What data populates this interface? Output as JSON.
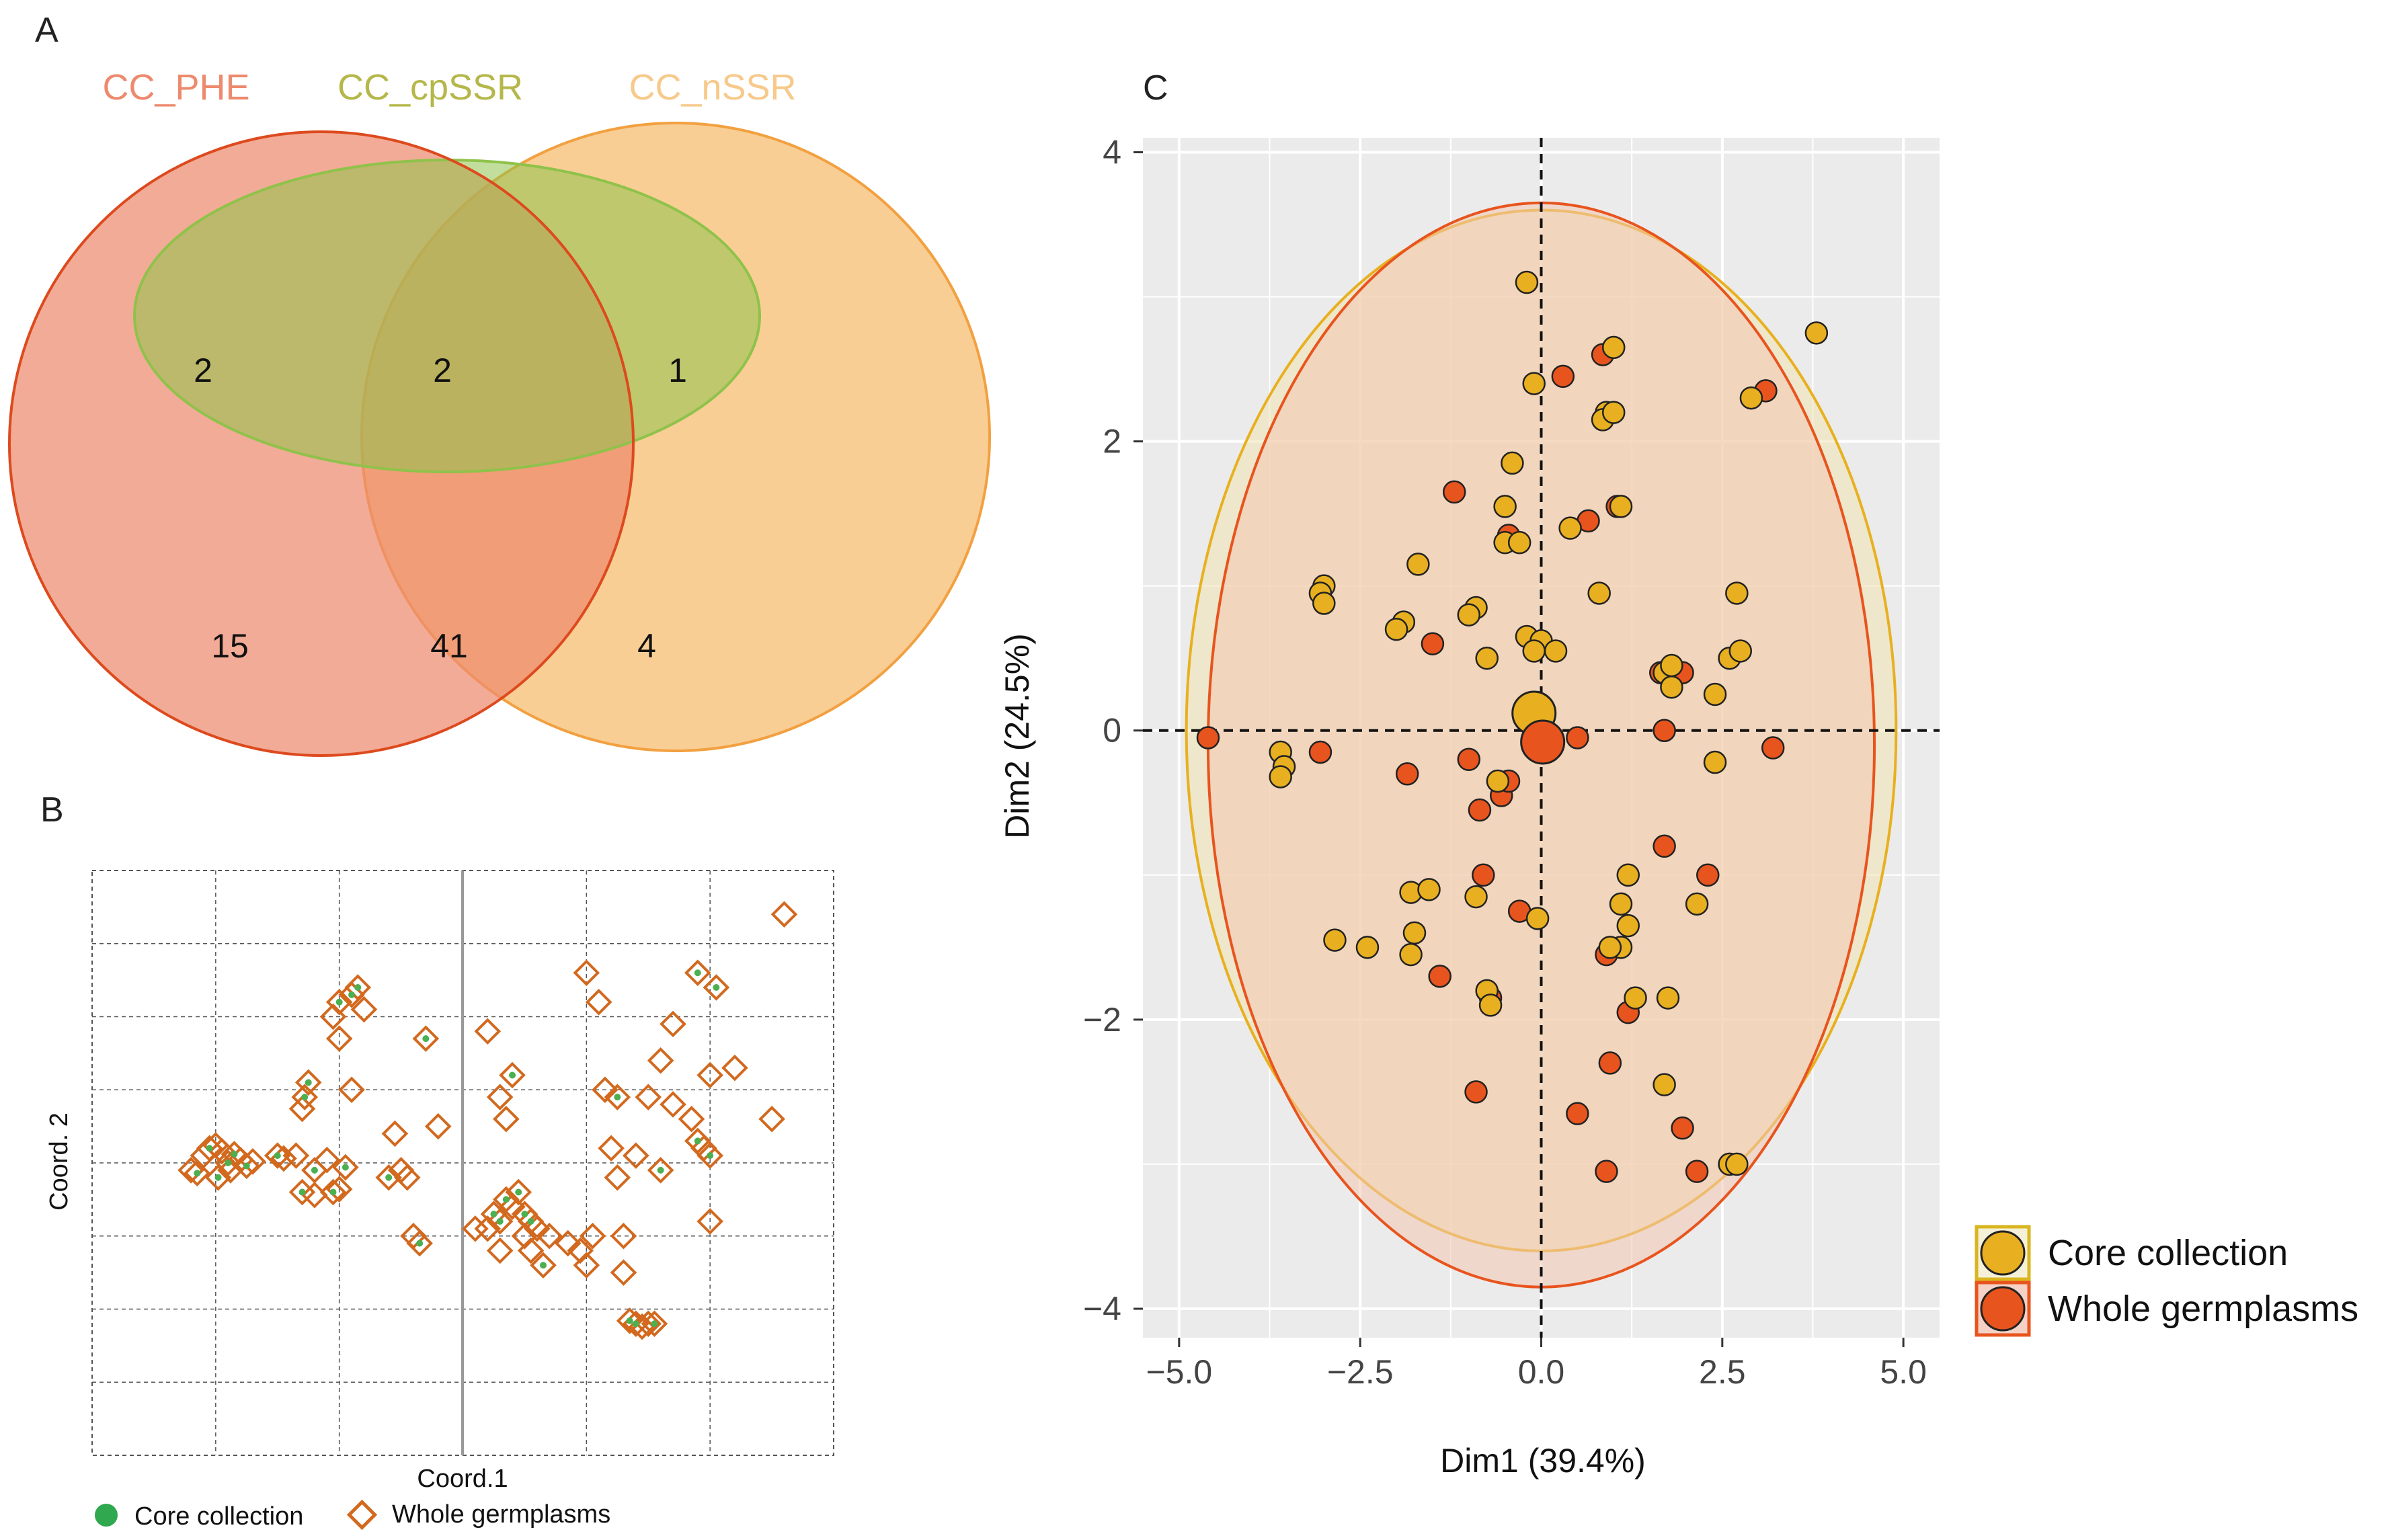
{
  "panels": {
    "a": {
      "label": "A",
      "sets": [
        {
          "name": "CC_PHE",
          "color": "#ED8A6E",
          "stroke": "#DD4A1E"
        },
        {
          "name": "CC_cpSSR",
          "color": "#B5B74A",
          "stroke": "#8FC24A"
        },
        {
          "name": "CC_nSSR",
          "color": "#F7C98A",
          "stroke": "#F2A040"
        }
      ],
      "counts": {
        "phe_cp_only": "2",
        "all_three": "2",
        "cp_nssr_only": "1",
        "phe_only": "15",
        "phe_nssr_only": "41",
        "nssr_only": "4"
      }
    },
    "b": {
      "label": "B"
    },
    "c": {
      "label": "C"
    }
  },
  "chart_data": [
    {
      "type": "scatter",
      "panel": "B",
      "title": "",
      "xlabel": "Coord.1",
      "ylabel": "Coord. 2",
      "xlim": [
        -3.0,
        3.0
      ],
      "ylim": [
        -2.0,
        2.0
      ],
      "legend": "bottom",
      "series": [
        {
          "name": "Whole germplasms",
          "marker": "open-diamond",
          "color": "#D2691E",
          "points": [
            [
              -2.2,
              -0.05
            ],
            [
              -2.15,
              -0.07
            ],
            [
              -2.1,
              0.05
            ],
            [
              -2.05,
              0.1
            ],
            [
              -2.0,
              0.12
            ],
            [
              -1.98,
              -0.1
            ],
            [
              -1.95,
              0.08
            ],
            [
              -1.9,
              0.0
            ],
            [
              -1.88,
              -0.05
            ],
            [
              -1.85,
              0.06
            ],
            [
              -1.8,
              0.02
            ],
            [
              -1.75,
              -0.02
            ],
            [
              -1.7,
              0.01
            ],
            [
              -1.5,
              0.05
            ],
            [
              -1.45,
              0.03
            ],
            [
              -1.3,
              -0.2
            ],
            [
              -1.35,
              0.05
            ],
            [
              -1.3,
              0.37
            ],
            [
              -1.28,
              0.45
            ],
            [
              -1.25,
              0.55
            ],
            [
              -1.2,
              -0.22
            ],
            [
              -1.2,
              -0.05
            ],
            [
              -1.1,
              0.02
            ],
            [
              -1.05,
              -0.2
            ],
            [
              -1.0,
              -0.18
            ],
            [
              -0.95,
              -0.03
            ],
            [
              -1.0,
              0.85
            ],
            [
              -1.05,
              1.0
            ],
            [
              -1.0,
              1.1
            ],
            [
              -0.9,
              1.15
            ],
            [
              -0.85,
              1.2
            ],
            [
              -0.8,
              1.05
            ],
            [
              -0.9,
              0.5
            ],
            [
              -0.6,
              -0.1
            ],
            [
              -0.55,
              0.2
            ],
            [
              -0.5,
              -0.05
            ],
            [
              -0.45,
              -0.1
            ],
            [
              -0.4,
              -0.5
            ],
            [
              -0.35,
              -0.55
            ],
            [
              -0.3,
              0.85
            ],
            [
              -0.2,
              0.25
            ],
            [
              0.1,
              -0.45
            ],
            [
              0.2,
              -0.45
            ],
            [
              0.25,
              -0.35
            ],
            [
              0.3,
              -0.4
            ],
            [
              0.3,
              -0.6
            ],
            [
              0.35,
              -0.25
            ],
            [
              0.4,
              -0.3
            ],
            [
              0.45,
              -0.2
            ],
            [
              0.5,
              -0.35
            ],
            [
              0.5,
              -0.5
            ],
            [
              0.55,
              -0.6
            ],
            [
              0.55,
              -0.4
            ],
            [
              0.6,
              -0.45
            ],
            [
              0.65,
              -0.7
            ],
            [
              0.7,
              -0.5
            ],
            [
              0.2,
              0.9
            ],
            [
              0.3,
              0.45
            ],
            [
              0.35,
              0.3
            ],
            [
              0.4,
              0.6
            ],
            [
              0.85,
              -0.55
            ],
            [
              0.95,
              -0.6
            ],
            [
              1.0,
              -0.7
            ],
            [
              1.05,
              -0.5
            ],
            [
              1.0,
              1.3
            ],
            [
              1.1,
              1.1
            ],
            [
              1.2,
              0.1
            ],
            [
              1.15,
              0.5
            ],
            [
              1.25,
              0.45
            ],
            [
              1.25,
              -0.1
            ],
            [
              1.3,
              -0.5
            ],
            [
              1.3,
              -0.75
            ],
            [
              1.35,
              -1.08
            ],
            [
              1.4,
              -1.1
            ],
            [
              1.45,
              -1.12
            ],
            [
              1.5,
              -1.1
            ],
            [
              1.55,
              -1.1
            ],
            [
              1.4,
              0.05
            ],
            [
              1.6,
              -0.05
            ],
            [
              1.5,
              0.45
            ],
            [
              1.6,
              0.7
            ],
            [
              1.7,
              0.95
            ],
            [
              1.7,
              0.4
            ],
            [
              1.85,
              0.3
            ],
            [
              1.9,
              1.3
            ],
            [
              1.9,
              0.15
            ],
            [
              1.95,
              0.1
            ],
            [
              2.0,
              0.05
            ],
            [
              2.0,
              0.6
            ],
            [
              2.0,
              -0.4
            ],
            [
              2.05,
              1.2
            ],
            [
              2.2,
              0.65
            ],
            [
              2.5,
              0.3
            ],
            [
              2.6,
              1.7
            ]
          ]
        },
        {
          "name": "Core collection",
          "marker": "dot",
          "color": "#4CAF50",
          "points": [
            [
              -2.15,
              -0.07
            ],
            [
              -2.05,
              0.1
            ],
            [
              -1.98,
              -0.1
            ],
            [
              -1.9,
              0.0
            ],
            [
              -1.85,
              0.06
            ],
            [
              -1.75,
              -0.02
            ],
            [
              -1.5,
              0.05
            ],
            [
              -1.3,
              -0.2
            ],
            [
              -1.28,
              0.45
            ],
            [
              -1.25,
              0.55
            ],
            [
              -1.2,
              -0.05
            ],
            [
              -1.05,
              -0.2
            ],
            [
              -0.95,
              -0.03
            ],
            [
              -1.0,
              1.1
            ],
            [
              -0.85,
              1.2
            ],
            [
              -0.9,
              1.15
            ],
            [
              -0.6,
              -0.1
            ],
            [
              -0.35,
              -0.55
            ],
            [
              -0.3,
              0.85
            ],
            [
              0.25,
              -0.35
            ],
            [
              0.3,
              -0.4
            ],
            [
              0.35,
              -0.25
            ],
            [
              0.4,
              0.6
            ],
            [
              0.45,
              -0.2
            ],
            [
              0.5,
              -0.35
            ],
            [
              0.55,
              -0.4
            ],
            [
              0.65,
              -0.7
            ],
            [
              1.25,
              0.45
            ],
            [
              1.35,
              -1.08
            ],
            [
              1.4,
              -1.1
            ],
            [
              1.55,
              -1.1
            ],
            [
              1.6,
              -0.05
            ],
            [
              1.9,
              0.15
            ],
            [
              2.0,
              0.05
            ],
            [
              1.9,
              1.3
            ],
            [
              2.05,
              1.2
            ]
          ]
        }
      ]
    },
    {
      "type": "scatter",
      "panel": "C",
      "title": "",
      "xlabel": "Dim1 (39.4%)",
      "ylabel": "Dim2 (24.5%)",
      "xlim": [
        -5.5,
        5.5
      ],
      "ylim": [
        -4.2,
        4.1
      ],
      "xticks": [
        -5.0,
        -2.5,
        0.0,
        2.5,
        5.0
      ],
      "xticklabels": [
        "−5.0",
        "−2.5",
        "0.0",
        "2.5",
        "5.0"
      ],
      "yticks": [
        -4,
        -2,
        0,
        2,
        4
      ],
      "yticklabels": [
        "−4",
        "−2",
        "0",
        "2",
        "4"
      ],
      "legend": "right",
      "series": [
        {
          "name": "Core collection",
          "color": "#E8B020",
          "ellipse": {
            "cx": 0.0,
            "cy": 0.0,
            "rx": 4.9,
            "ry": 3.6
          },
          "centroid": [
            -0.1,
            0.12
          ],
          "points": [
            [
              -0.2,
              3.1
            ],
            [
              3.8,
              2.75
            ],
            [
              -0.1,
              2.4
            ],
            [
              1.0,
              2.65
            ],
            [
              0.9,
              2.2
            ],
            [
              0.85,
              2.15
            ],
            [
              1.0,
              2.2
            ],
            [
              2.9,
              2.3
            ],
            [
              -0.4,
              1.85
            ],
            [
              -0.5,
              1.55
            ],
            [
              -0.5,
              1.3
            ],
            [
              -0.3,
              1.3
            ],
            [
              0.4,
              1.4
            ],
            [
              1.1,
              1.55
            ],
            [
              -1.7,
              1.15
            ],
            [
              -3.0,
              1.0
            ],
            [
              -3.05,
              0.95
            ],
            [
              -3.0,
              0.88
            ],
            [
              -0.9,
              0.85
            ],
            [
              -1.0,
              0.8
            ],
            [
              -1.9,
              0.75
            ],
            [
              -2.0,
              0.7
            ],
            [
              0.8,
              0.95
            ],
            [
              2.7,
              0.95
            ],
            [
              -0.2,
              0.65
            ],
            [
              0.0,
              0.62
            ],
            [
              -0.1,
              0.55
            ],
            [
              0.2,
              0.55
            ],
            [
              -0.75,
              0.5
            ],
            [
              1.7,
              0.4
            ],
            [
              1.8,
              0.45
            ],
            [
              1.8,
              0.3
            ],
            [
              2.6,
              0.5
            ],
            [
              2.75,
              0.55
            ],
            [
              2.4,
              0.25
            ],
            [
              -3.6,
              -0.15
            ],
            [
              -3.55,
              -0.25
            ],
            [
              -3.6,
              -0.32
            ],
            [
              -0.6,
              -0.35
            ],
            [
              2.4,
              -0.22
            ],
            [
              1.2,
              -1.0
            ],
            [
              -1.8,
              -1.12
            ],
            [
              -1.55,
              -1.1
            ],
            [
              -0.9,
              -1.15
            ],
            [
              -0.05,
              -1.3
            ],
            [
              1.1,
              -1.2
            ],
            [
              1.2,
              -1.35
            ],
            [
              1.1,
              -1.5
            ],
            [
              0.95,
              -1.5
            ],
            [
              2.15,
              -1.2
            ],
            [
              -2.85,
              -1.45
            ],
            [
              -2.4,
              -1.5
            ],
            [
              -1.75,
              -1.4
            ],
            [
              -1.8,
              -1.55
            ],
            [
              -0.75,
              -1.8
            ],
            [
              -0.7,
              -1.9
            ],
            [
              1.3,
              -1.85
            ],
            [
              1.75,
              -1.85
            ],
            [
              1.7,
              -2.45
            ],
            [
              2.6,
              -3.0
            ],
            [
              2.7,
              -3.0
            ]
          ]
        },
        {
          "name": "Whole germplasms",
          "color": "#E8541E",
          "ellipse": {
            "cx": 0.0,
            "cy": -0.1,
            "rx": 4.6,
            "ry": 3.75
          },
          "centroid": [
            0.02,
            -0.08
          ],
          "points": [
            [
              0.3,
              2.45
            ],
            [
              0.85,
              2.6
            ],
            [
              3.1,
              2.35
            ],
            [
              -1.2,
              1.65
            ],
            [
              1.05,
              1.55
            ],
            [
              0.65,
              1.45
            ],
            [
              -0.45,
              1.35
            ],
            [
              -1.5,
              0.6
            ],
            [
              1.65,
              0.4
            ],
            [
              1.95,
              0.4
            ],
            [
              0.5,
              -0.05
            ],
            [
              1.7,
              0.0
            ],
            [
              -4.6,
              -0.05
            ],
            [
              -3.05,
              -0.15
            ],
            [
              -1.85,
              -0.3
            ],
            [
              -1.0,
              -0.2
            ],
            [
              3.2,
              -0.12
            ],
            [
              -0.85,
              -0.55
            ],
            [
              -0.55,
              -0.45
            ],
            [
              -0.45,
              -0.35
            ],
            [
              1.7,
              -0.8
            ],
            [
              -0.8,
              -1.0
            ],
            [
              2.3,
              -1.0
            ],
            [
              -0.3,
              -1.25
            ],
            [
              0.9,
              -1.55
            ],
            [
              -1.4,
              -1.7
            ],
            [
              -0.7,
              -1.85
            ],
            [
              1.2,
              -1.95
            ],
            [
              0.95,
              -2.3
            ],
            [
              -0.9,
              -2.5
            ],
            [
              0.5,
              -2.65
            ],
            [
              1.95,
              -2.75
            ],
            [
              0.9,
              -3.05
            ],
            [
              2.15,
              -3.05
            ]
          ]
        }
      ]
    }
  ]
}
